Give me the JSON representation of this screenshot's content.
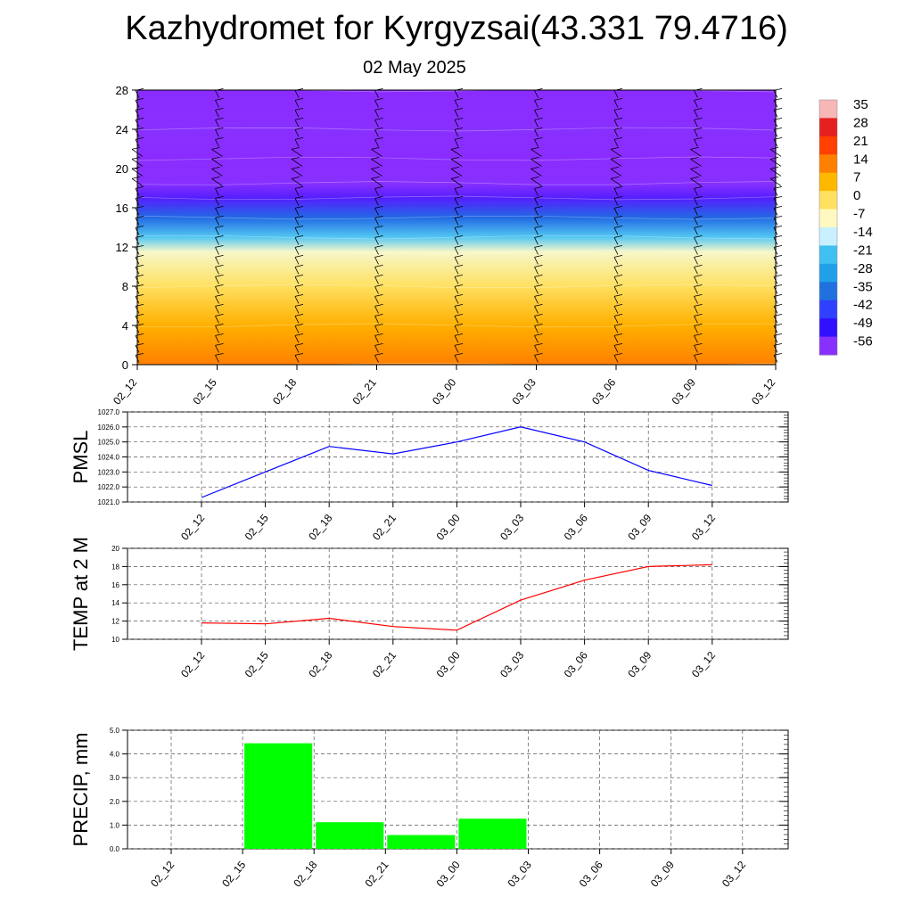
{
  "header": {
    "title": "Kazhydromet for Kyrgyzsai(43.331 79.4716)",
    "date": "02 May 2025"
  },
  "chart_data": [
    {
      "type": "heatmap",
      "name": "cross-section",
      "x_categories": [
        "02_12",
        "02_15",
        "02_18",
        "02_21",
        "03_00",
        "03_03",
        "03_06",
        "03_09",
        "03_12"
      ],
      "y_ticks": [
        0,
        4,
        8,
        12,
        16,
        20,
        24,
        28
      ],
      "ylim": [
        0,
        28
      ],
      "value_field_by_level": [
        {
          "level": 0,
          "value": 14
        },
        {
          "level": 4,
          "value": 8
        },
        {
          "level": 8,
          "value": 0
        },
        {
          "level": 11.5,
          "value": -8
        },
        {
          "level": 13,
          "value": -20
        },
        {
          "level": 15,
          "value": -36
        },
        {
          "level": 17,
          "value": -52
        },
        {
          "level": 18.5,
          "value": -58
        },
        {
          "level": 21,
          "value": -62
        },
        {
          "level": 24,
          "value": -60
        },
        {
          "level": 28,
          "value": -64
        }
      ],
      "colorbar": {
        "labels": [
          "35",
          "28",
          "21",
          "14",
          "7",
          "0",
          "-7",
          "-14",
          "-21",
          "-28",
          "-35",
          "-42",
          "-49",
          "-56"
        ],
        "colors": [
          "#f7b7b7",
          "#e52020",
          "#ff4000",
          "#ff8000",
          "#ffb800",
          "#ffe060",
          "#fff8c0",
          "#c8f0ff",
          "#40c0f0",
          "#20a0e8",
          "#2070e0",
          "#3040ff",
          "#3010ff",
          "#8830ff"
        ]
      },
      "wind_barbs": "present at every time step and level"
    },
    {
      "type": "line",
      "ylabel": "PMSL",
      "categories": [
        "02_12",
        "02_15",
        "02_18",
        "02_21",
        "03_00",
        "03_03",
        "03_06",
        "03_09",
        "03_12"
      ],
      "values": [
        1021.3,
        1023.0,
        1024.7,
        1024.2,
        1025.0,
        1026.0,
        1025.0,
        1023.1,
        1022.1
      ],
      "ylim": [
        1021.0,
        1027.0
      ],
      "y_ticks": [
        "1021.0",
        "1022.0",
        "1023.0",
        "1024.0",
        "1025.0",
        "1026.0",
        "1027.0"
      ],
      "color": "#0000ff",
      "grid": true
    },
    {
      "type": "line",
      "ylabel": "TEMP at 2 M",
      "categories": [
        "02_12",
        "02_15",
        "02_18",
        "02_21",
        "03_00",
        "03_03",
        "03_06",
        "03_09",
        "03_12"
      ],
      "values": [
        11.8,
        11.7,
        12.3,
        11.4,
        11.0,
        14.3,
        16.5,
        18.0,
        18.2
      ],
      "ylim": [
        10,
        20
      ],
      "y_ticks": [
        "10",
        "12",
        "14",
        "16",
        "18",
        "20"
      ],
      "color": "#ff0000",
      "grid": true
    },
    {
      "type": "bar",
      "ylabel": "PRECIP, mm",
      "categories": [
        "02_12",
        "02_15",
        "02_18",
        "02_21",
        "03_00",
        "03_03",
        "03_06",
        "03_09",
        "03_12"
      ],
      "values": [
        0,
        4.45,
        1.12,
        0.58,
        1.27,
        0,
        0,
        0,
        0
      ],
      "ylim": [
        0.0,
        5.0
      ],
      "y_ticks": [
        "0.0",
        "1.0",
        "2.0",
        "3.0",
        "4.0",
        "5.0"
      ],
      "color": "#00ff00",
      "grid": true
    }
  ]
}
